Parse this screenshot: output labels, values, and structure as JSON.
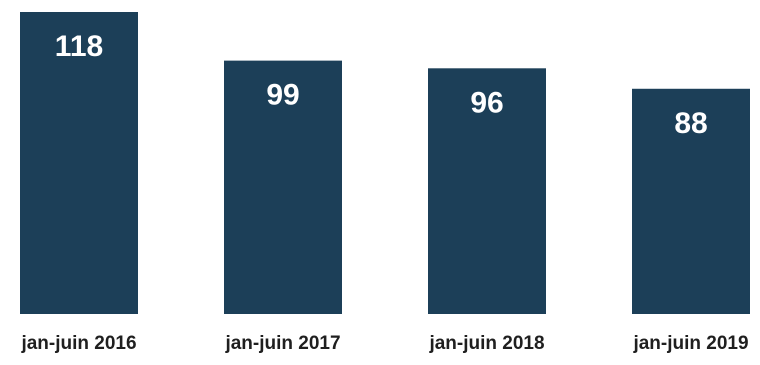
{
  "chart_data": {
    "type": "bar",
    "title": "",
    "xlabel": "",
    "ylabel": "",
    "categories": [
      "jan-juin 2016",
      "jan-juin 2017",
      "jan-juin 2018",
      "jan-juin 2019"
    ],
    "values": [
      118,
      99,
      96,
      88
    ],
    "value_labels": [
      "118",
      "99",
      "96",
      "88"
    ],
    "ylim": [
      0,
      118
    ],
    "grid": false,
    "legend": "none",
    "bar_color": "#1c3f58",
    "value_label_color": "#ffffff",
    "category_label_color": "#1f1f1f"
  }
}
